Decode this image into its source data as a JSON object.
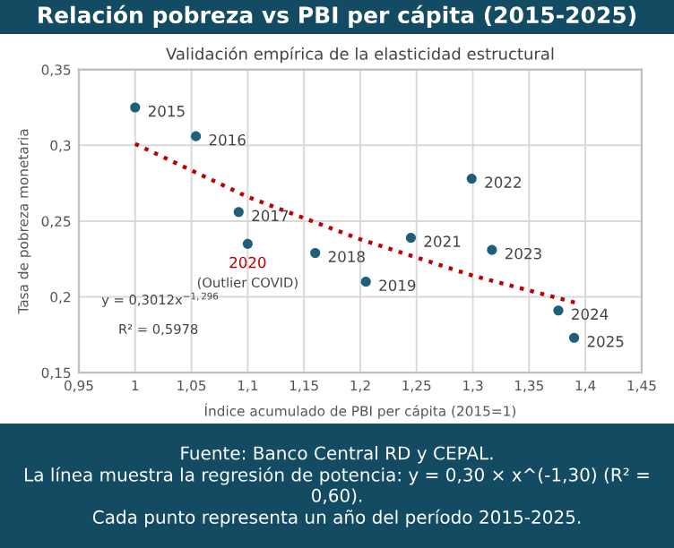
{
  "chart_data": {
    "type": "scatter",
    "title": "Relación pobreza vs PBI per cápita (2015-2025)",
    "subtitle": "Validación empírica de la elasticidad estructural",
    "xlabel": "Índice acumulado de PBI per cápita (2015=1)",
    "ylabel": "Tasa de pobreza monetaria",
    "series": [
      {
        "color": "#1f5f7a",
        "marker": "circle",
        "x": [
          1.0,
          1.054,
          1.092,
          1.16,
          1.205,
          1.1,
          1.245,
          1.299,
          1.317,
          1.376,
          1.39
        ],
        "values": [
          0.325,
          0.306,
          0.256,
          0.229,
          0.21,
          0.235,
          0.239,
          0.278,
          0.231,
          0.191,
          0.173
        ]
      },
      {
        "type": "line",
        "color": "#c00000",
        "line_style": "dotted",
        "x": [
          1.0,
          1.1,
          1.2,
          1.3,
          1.392
        ],
        "values": [
          0.301,
          0.266,
          0.238,
          0.214,
          0.196
        ]
      }
    ],
    "xlim": [
      0.95,
      1.45
    ],
    "ylim": [
      0.15,
      0.35
    ],
    "xticks": [
      {
        "value": 0.95,
        "label": "0,95"
      },
      1,
      {
        "value": 1.05,
        "label": "1,05"
      },
      {
        "value": 1.1,
        "label": "1,1"
      },
      {
        "value": 1.15,
        "label": "1,15"
      },
      {
        "value": 1.2,
        "label": "1,2"
      },
      {
        "value": 1.25,
        "label": "1,25"
      },
      {
        "value": 1.3,
        "label": "1,3"
      },
      {
        "value": 1.35,
        "label": "1,35"
      },
      {
        "value": 1.4,
        "label": "1,4"
      },
      {
        "value": 1.45,
        "label": "1,45"
      }
    ],
    "yticks": [
      {
        "value": 0.15,
        "label": "0,15"
      },
      {
        "value": 0.2,
        "label": "0,2"
      },
      {
        "value": 0.25,
        "label": "0,25"
      },
      {
        "value": 0.3,
        "label": "0,3"
      },
      {
        "value": 0.35,
        "label": "0,35"
      }
    ],
    "grid": true,
    "legend": false,
    "annotations": [
      {
        "text": "2015",
        "x": 1.0,
        "y": 0.325
      },
      {
        "text": "2016",
        "x": 1.054,
        "y": 0.306
      },
      {
        "text": "2017",
        "x": 1.092,
        "y": 0.256
      },
      {
        "text": "2018",
        "x": 1.16,
        "y": 0.229
      },
      {
        "text": "2019",
        "x": 1.205,
        "y": 0.21
      },
      {
        "text": "2020",
        "x": 1.1,
        "y": 0.235
      },
      {
        "text": "(Outlier COVID)",
        "x": 1.1,
        "y": 0.235
      },
      {
        "text": "2021",
        "x": 1.245,
        "y": 0.239
      },
      {
        "text": "2022",
        "x": 1.299,
        "y": 0.278
      },
      {
        "text": "2023",
        "x": 1.317,
        "y": 0.231
      },
      {
        "text": "2024",
        "x": 1.376,
        "y": 0.191
      },
      {
        "text": "2025",
        "x": 1.39,
        "y": 0.173
      },
      "y = 0,3012x$^{−1,296}$",
      "R² = 0,5978",
      "Fuente: Banco Central RD y CEPAL.",
      "La línea muestra la regresión de potencia: y = 0,30 × x^(-1,30) (R² = 0,60).",
      "Cada punto representa un año del período 2015-2025."
    ]
  }
}
